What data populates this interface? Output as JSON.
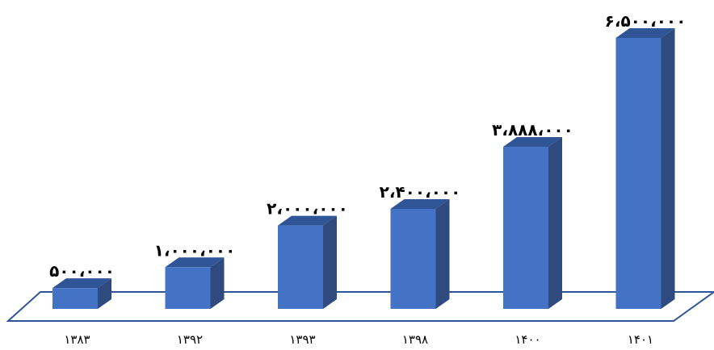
{
  "chart_data": {
    "type": "bar",
    "categories": [
      "۱۳۸۳",
      "۱۳۹۲",
      "۱۳۹۳",
      "۱۳۹۸",
      "۱۴۰۰",
      "۱۴۰۱"
    ],
    "values": [
      500000,
      1000000,
      2000000,
      2400000,
      3888000,
      6500000
    ],
    "value_labels": [
      "۵۰۰،۰۰۰",
      "۱،۰۰۰،۰۰۰",
      "۲،۰۰۰،۰۰۰",
      "۲،۴۰۰،۰۰۰",
      "۳،۸۸۸،۰۰۰",
      "۶،۵۰۰،۰۰۰"
    ],
    "ylim": [
      0,
      6500000
    ],
    "grid": false,
    "legend": "none",
    "style": "3d-column",
    "colors": {
      "bar_front": "#4472C4",
      "bar_top": "#2F5597",
      "bar_side": "#2E4A7E",
      "floor_stroke": "#2F5597"
    }
  }
}
